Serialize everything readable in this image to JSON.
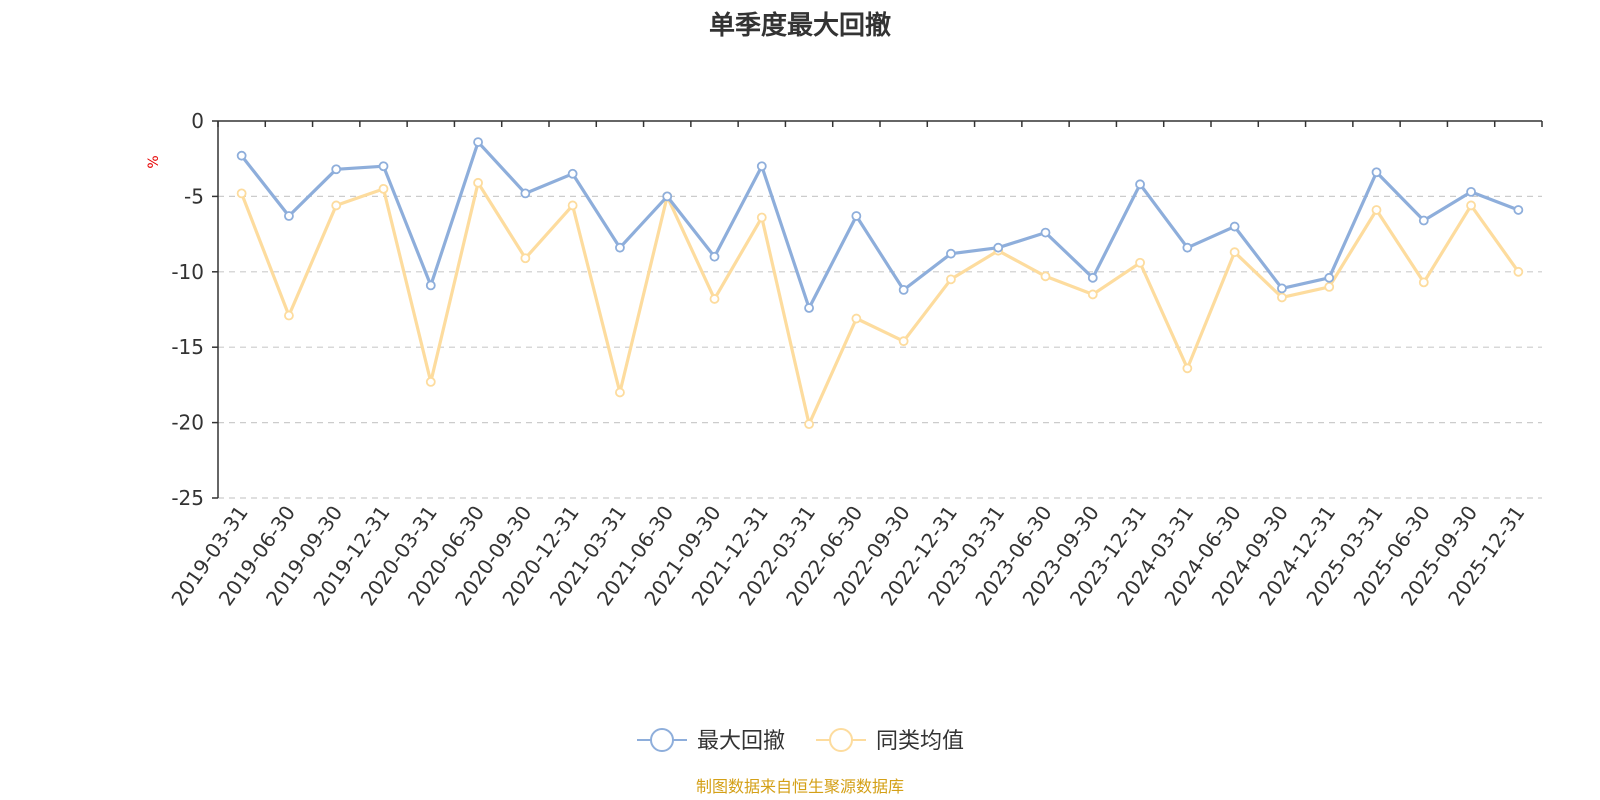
{
  "chart_data": {
    "type": "line",
    "title": "单季度最大回撤",
    "ylabel": "%",
    "xlabel": "",
    "ylim": [
      -25,
      0
    ],
    "yticks": [
      0,
      -5,
      -10,
      -15,
      -20,
      -25
    ],
    "grid": true,
    "legend_position": "bottom",
    "categories": [
      "2019-03-31",
      "2019-06-30",
      "2019-09-30",
      "2019-12-31",
      "2020-03-31",
      "2020-06-30",
      "2020-09-30",
      "2020-12-31",
      "2021-03-31",
      "2021-06-30",
      "2021-09-30",
      "2021-12-31",
      "2022-03-31",
      "2022-06-30",
      "2022-09-30",
      "2022-12-31",
      "2023-03-31",
      "2023-06-30",
      "2023-09-30",
      "2023-12-31",
      "2024-03-31",
      "2024-06-30",
      "2024-09-30",
      "2024-12-31",
      "2025-03-31",
      "2025-06-30",
      "2025-09-30",
      "2025-12-31"
    ],
    "series": [
      {
        "name": "最大回撤",
        "color": "#8eaedb",
        "values": [
          -2.3,
          -6.3,
          -3.2,
          -3.0,
          -10.9,
          -1.4,
          -4.8,
          -3.5,
          -8.4,
          -5.0,
          -9.0,
          -3.0,
          -12.4,
          -6.3,
          -11.2,
          -8.8,
          -8.4,
          -7.4,
          -10.4,
          -4.2,
          -8.4,
          -7.0,
          -11.1,
          -10.4,
          -3.4,
          -6.6,
          -4.7,
          -5.9
        ]
      },
      {
        "name": "同类均值",
        "color": "#fddc9e",
        "values": [
          -4.8,
          -12.9,
          -5.6,
          -4.5,
          -17.3,
          -4.1,
          -9.1,
          -5.6,
          -18.0,
          -5.0,
          -11.8,
          -6.4,
          -20.1,
          -13.1,
          -14.6,
          -10.5,
          -8.6,
          -10.3,
          -11.5,
          -9.4,
          -16.4,
          -8.7,
          -11.7,
          -11.0,
          -5.9,
          -10.7,
          -5.6,
          -10.0
        ]
      }
    ],
    "source": "制图数据来自恒生聚源数据库"
  },
  "colors": {
    "axis": "#333333",
    "grid": "#cccccc",
    "unit": "#e60000",
    "source": "#d4a017"
  }
}
